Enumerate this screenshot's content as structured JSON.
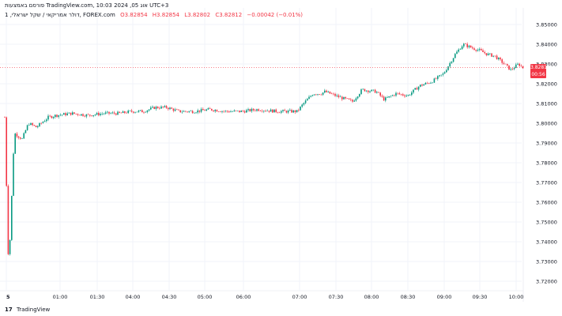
{
  "header": {
    "title": "דולר אמריקאי / שקל ישראלי, 1, FOREX.com"
  },
  "watermark": {
    "text": "פורסם באמצעות TradingView.com, 10:03 2024 ,05 אוג UTC+3"
  },
  "legend": {
    "open": "O3.82854",
    "high": "H3.82854",
    "low": "L3.82802",
    "close": "C3.82812",
    "change": "−0.00042 (−0.01%)"
  },
  "price_badge": {
    "price": "3.82812",
    "countdown": "00:56"
  },
  "footer": {
    "brand": "TradingView",
    "logo": "17"
  },
  "colors": {
    "up": "#089981",
    "down": "#f23645",
    "grid": "#f0f3fa",
    "axis_text": "#131722"
  },
  "chart_data": {
    "type": "candlestick",
    "title": "",
    "xlabel": "",
    "ylabel": "",
    "ylim": [
      3.716,
      3.856
    ],
    "y_ticks": [
      "3.85000",
      "3.84000",
      "3.83000",
      "3.82000",
      "3.81000",
      "3.80000",
      "3.79000",
      "3.78000",
      "3.77000",
      "3.76000",
      "3.75000",
      "3.74000",
      "3.73000",
      "3.72000"
    ],
    "x_ticks": [
      "5",
      "01:00",
      "01:30",
      "04:00",
      "04:30",
      "05:00",
      "06:00",
      "07:00",
      "07:30",
      "08:00",
      "08:30",
      "09:00",
      "09:30",
      "10:00"
    ],
    "last_price": 3.82812,
    "grid": true,
    "anchors": [
      {
        "t": 0,
        "p": 3.803
      },
      {
        "t": 5,
        "p": 3.725
      },
      {
        "t": 12,
        "p": 3.795
      },
      {
        "t": 22,
        "p": 3.792
      },
      {
        "t": 30,
        "p": 3.8
      },
      {
        "t": 40,
        "p": 3.798
      },
      {
        "t": 55,
        "p": 3.803
      },
      {
        "t": 65,
        "p": 3.804
      },
      {
        "t": 85,
        "p": 3.805
      },
      {
        "t": 105,
        "p": 3.804
      },
      {
        "t": 125,
        "p": 3.805
      },
      {
        "t": 145,
        "p": 3.805
      },
      {
        "t": 160,
        "p": 3.806
      },
      {
        "t": 175,
        "p": 3.806
      },
      {
        "t": 190,
        "p": 3.808
      },
      {
        "t": 205,
        "p": 3.808
      },
      {
        "t": 220,
        "p": 3.806
      },
      {
        "t": 240,
        "p": 3.806
      },
      {
        "t": 260,
        "p": 3.807
      },
      {
        "t": 280,
        "p": 3.806
      },
      {
        "t": 300,
        "p": 3.806
      },
      {
        "t": 320,
        "p": 3.807
      },
      {
        "t": 345,
        "p": 3.806
      },
      {
        "t": 370,
        "p": 3.806
      },
      {
        "t": 378,
        "p": 3.81
      },
      {
        "t": 390,
        "p": 3.815
      },
      {
        "t": 400,
        "p": 3.815
      },
      {
        "t": 405,
        "p": 3.816
      },
      {
        "t": 425,
        "p": 3.813
      },
      {
        "t": 440,
        "p": 3.811
      },
      {
        "t": 452,
        "p": 3.817
      },
      {
        "t": 470,
        "p": 3.816
      },
      {
        "t": 480,
        "p": 3.812
      },
      {
        "t": 495,
        "p": 3.815
      },
      {
        "t": 510,
        "p": 3.814
      },
      {
        "t": 525,
        "p": 3.819
      },
      {
        "t": 540,
        "p": 3.821
      },
      {
        "t": 555,
        "p": 3.825
      },
      {
        "t": 570,
        "p": 3.835
      },
      {
        "t": 580,
        "p": 3.84
      },
      {
        "t": 592,
        "p": 3.838
      },
      {
        "t": 600,
        "p": 3.837
      },
      {
        "t": 610,
        "p": 3.835
      },
      {
        "t": 620,
        "p": 3.834
      },
      {
        "t": 632,
        "p": 3.83
      },
      {
        "t": 640,
        "p": 3.827
      },
      {
        "t": 650,
        "p": 3.83
      },
      {
        "t": 656,
        "p": 3.828
      }
    ]
  }
}
